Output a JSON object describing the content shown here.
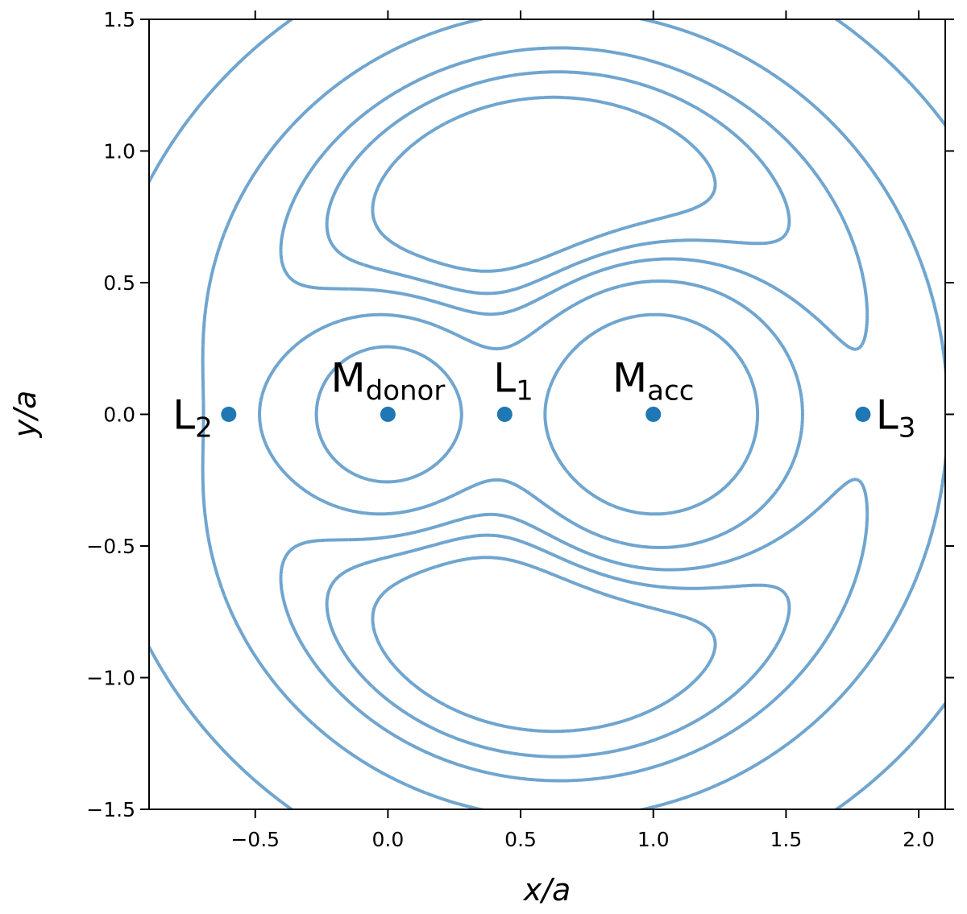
{
  "chart_data": {
    "type": "contour",
    "title": "",
    "xlabel": "x/a",
    "ylabel": "y/a",
    "xlim": [
      -0.9,
      2.1
    ],
    "ylim": [
      -1.5,
      1.5
    ],
    "x_ticks": [
      -0.5,
      0.0,
      0.5,
      1.0,
      1.5,
      2.0
    ],
    "x_tick_labels": [
      "−0.5",
      "0.0",
      "0.5",
      "1.0",
      "1.5",
      "2.0"
    ],
    "y_ticks": [
      -1.5,
      -1.0,
      -0.5,
      0.0,
      0.5,
      1.0,
      1.5
    ],
    "y_tick_labels": [
      "−1.5",
      "−1.0",
      "−0.5",
      "0.0",
      "0.5",
      "1.0",
      "1.5"
    ],
    "mass_ratio_donor_over_accretor": 0.5,
    "potential_levels": [
      -4.4,
      -3.6,
      -3.3,
      -3.14,
      -3.0,
      -2.25
    ],
    "contour_color": "#6fa5cf",
    "marker_color": "#1f77b4",
    "points": [
      {
        "main": "M",
        "sub": "donor",
        "x": 0.0,
        "y": 0.0,
        "label_pos": "above"
      },
      {
        "main": "M",
        "sub": "acc",
        "x": 1.0,
        "y": 0.0,
        "label_pos": "above"
      },
      {
        "main": "L",
        "sub": "1",
        "x": 0.44,
        "y": 0.0,
        "label_pos": "above-right"
      },
      {
        "main": "L",
        "sub": "2",
        "x": -0.6,
        "y": 0.0,
        "label_pos": "left"
      },
      {
        "main": "L",
        "sub": "3",
        "x": 1.79,
        "y": 0.0,
        "label_pos": "right"
      }
    ],
    "grid": false,
    "legend": "none"
  }
}
